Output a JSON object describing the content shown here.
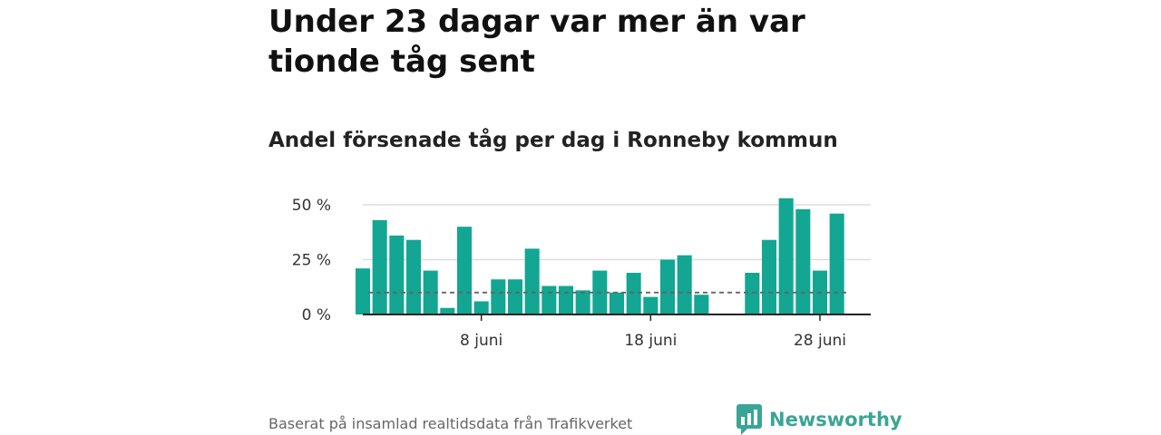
{
  "headline": "Under 23 dagar var mer än var tionde tåg sent",
  "subtitle": "Andel försenade tåg per dag i Ronneby kommun",
  "source": "Baserat på insamlad realtidsdata från Trafikverket",
  "brand": {
    "name": "Newsworthy",
    "icon": "newsworthy-logo-icon"
  },
  "colors": {
    "bar": "#12a693",
    "reference_line": "#666666",
    "grid": "#dddddd",
    "axis": "#222222",
    "brand": "#3aa597"
  },
  "chart_data": {
    "type": "bar",
    "x_unit": "day of June",
    "x_range": [
      1,
      31
    ],
    "x": [
      1,
      2,
      3,
      4,
      5,
      6,
      7,
      8,
      9,
      10,
      11,
      12,
      13,
      14,
      15,
      16,
      17,
      18,
      19,
      20,
      21,
      22,
      23,
      24,
      25,
      26,
      27,
      28,
      29,
      30
    ],
    "values": [
      21,
      43,
      36,
      34,
      20,
      3,
      40,
      6,
      16,
      16,
      30,
      13,
      13,
      11,
      20,
      10,
      19,
      8,
      25,
      27,
      9,
      null,
      null,
      19,
      34,
      53,
      48,
      20,
      46,
      null
    ],
    "y_unit": "%",
    "ylim": [
      0,
      50
    ],
    "yticks": [
      {
        "value": 0,
        "label": "0 %"
      },
      {
        "value": 25,
        "label": "25 %"
      },
      {
        "value": 50,
        "label": "50 %"
      }
    ],
    "xticks": [
      {
        "value": 8,
        "label": "8 juni"
      },
      {
        "value": 18,
        "label": "18 juni"
      },
      {
        "value": 28,
        "label": "28 juni"
      }
    ],
    "reference_line": {
      "value": 10,
      "style": "dashed"
    },
    "grid": true,
    "legend": "none"
  }
}
